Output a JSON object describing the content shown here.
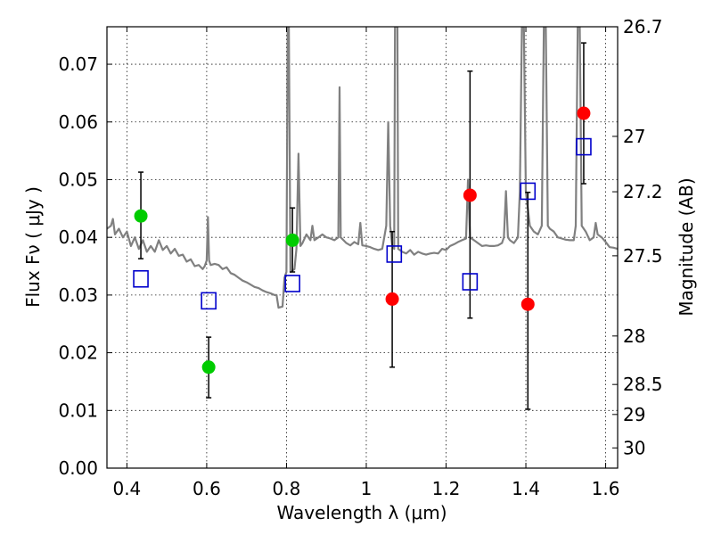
{
  "chart_data": {
    "type": "scatter",
    "xlabel": "Wavelength  λ (μm)",
    "ylabel": "Flux  Fν  ( μJy )",
    "y2label": "Magnitude (AB)",
    "xlim": [
      0.35,
      1.63
    ],
    "ylim": [
      0.0,
      0.0765
    ],
    "grid": true,
    "x_ticks": [
      {
        "value": 0.4,
        "label": "0.4"
      },
      {
        "value": 0.6,
        "label": "0.6"
      },
      {
        "value": 0.8,
        "label": "0.8"
      },
      {
        "value": 1.0,
        "label": "1"
      },
      {
        "value": 1.2,
        "label": "1.2"
      },
      {
        "value": 1.4,
        "label": "1.4"
      },
      {
        "value": 1.6,
        "label": "1.6"
      }
    ],
    "y_ticks": [
      {
        "value": 0.0,
        "label": "0.00"
      },
      {
        "value": 0.01,
        "label": "0.01"
      },
      {
        "value": 0.02,
        "label": "0.02"
      },
      {
        "value": 0.03,
        "label": "0.03"
      },
      {
        "value": 0.04,
        "label": "0.04"
      },
      {
        "value": 0.05,
        "label": "0.05"
      },
      {
        "value": 0.06,
        "label": "0.06"
      },
      {
        "value": 0.07,
        "label": "0.07"
      }
    ],
    "y2_ticks": [
      {
        "flux": 0.0765,
        "label": "26.7"
      },
      {
        "flux": 0.0575,
        "label": "27"
      },
      {
        "flux": 0.0479,
        "label": "27.2"
      },
      {
        "flux": 0.0368,
        "label": "27.5"
      },
      {
        "flux": 0.0229,
        "label": "28"
      },
      {
        "flux": 0.0145,
        "label": "28.5"
      },
      {
        "flux": 0.0093,
        "label": "29"
      },
      {
        "flux": 0.0035,
        "label": "30"
      }
    ],
    "colors": {
      "spectrum": "#808080",
      "green": "#00cc00",
      "red": "#ff0000",
      "model": "#0000cc",
      "errorbar": "#000000"
    },
    "spectrum": [
      [
        0.35,
        0.0415
      ],
      [
        0.36,
        0.042
      ],
      [
        0.365,
        0.0432
      ],
      [
        0.37,
        0.0405
      ],
      [
        0.38,
        0.0415
      ],
      [
        0.39,
        0.04
      ],
      [
        0.4,
        0.041
      ],
      [
        0.41,
        0.0385
      ],
      [
        0.42,
        0.04
      ],
      [
        0.43,
        0.038
      ],
      [
        0.44,
        0.0395
      ],
      [
        0.45,
        0.0375
      ],
      [
        0.46,
        0.0385
      ],
      [
        0.47,
        0.0375
      ],
      [
        0.48,
        0.0395
      ],
      [
        0.49,
        0.0378
      ],
      [
        0.5,
        0.0385
      ],
      [
        0.51,
        0.0372
      ],
      [
        0.52,
        0.038
      ],
      [
        0.53,
        0.0368
      ],
      [
        0.54,
        0.037
      ],
      [
        0.55,
        0.0358
      ],
      [
        0.56,
        0.0362
      ],
      [
        0.57,
        0.035
      ],
      [
        0.58,
        0.0352
      ],
      [
        0.59,
        0.0345
      ],
      [
        0.595,
        0.035
      ],
      [
        0.6,
        0.036
      ],
      [
        0.603,
        0.0435
      ],
      [
        0.606,
        0.036
      ],
      [
        0.61,
        0.0352
      ],
      [
        0.62,
        0.0354
      ],
      [
        0.63,
        0.0352
      ],
      [
        0.64,
        0.0345
      ],
      [
        0.65,
        0.0348
      ],
      [
        0.66,
        0.0338
      ],
      [
        0.67,
        0.0335
      ],
      [
        0.68,
        0.033
      ],
      [
        0.69,
        0.0325
      ],
      [
        0.7,
        0.0322
      ],
      [
        0.71,
        0.0318
      ],
      [
        0.72,
        0.0314
      ],
      [
        0.73,
        0.0312
      ],
      [
        0.74,
        0.0308
      ],
      [
        0.75,
        0.0305
      ],
      [
        0.76,
        0.0303
      ],
      [
        0.77,
        0.03
      ],
      [
        0.775,
        0.03
      ],
      [
        0.78,
        0.0278
      ],
      [
        0.79,
        0.028
      ],
      [
        0.795,
        0.033
      ],
      [
        0.8,
        0.034
      ],
      [
        0.803,
        0.0765
      ],
      [
        0.806,
        0.0765
      ],
      [
        0.81,
        0.034
      ],
      [
        0.82,
        0.0345
      ],
      [
        0.825,
        0.038
      ],
      [
        0.83,
        0.0545
      ],
      [
        0.835,
        0.0385
      ],
      [
        0.84,
        0.039
      ],
      [
        0.85,
        0.0405
      ],
      [
        0.86,
        0.0395
      ],
      [
        0.865,
        0.042
      ],
      [
        0.87,
        0.0395
      ],
      [
        0.88,
        0.04
      ],
      [
        0.89,
        0.0405
      ],
      [
        0.9,
        0.04
      ],
      [
        0.91,
        0.0398
      ],
      [
        0.92,
        0.0395
      ],
      [
        0.93,
        0.04
      ],
      [
        0.933,
        0.066
      ],
      [
        0.936,
        0.04
      ],
      [
        0.95,
        0.039
      ],
      [
        0.96,
        0.0386
      ],
      [
        0.97,
        0.0392
      ],
      [
        0.98,
        0.0388
      ],
      [
        0.985,
        0.0425
      ],
      [
        0.99,
        0.0386
      ],
      [
        1.0,
        0.0385
      ],
      [
        1.01,
        0.0383
      ],
      [
        1.02,
        0.038
      ],
      [
        1.03,
        0.0378
      ],
      [
        1.04,
        0.038
      ],
      [
        1.05,
        0.042
      ],
      [
        1.055,
        0.06
      ],
      [
        1.06,
        0.042
      ],
      [
        1.065,
        0.0385
      ],
      [
        1.07,
        0.038
      ],
      [
        1.072,
        0.0765
      ],
      [
        1.078,
        0.0765
      ],
      [
        1.08,
        0.038
      ],
      [
        1.09,
        0.0375
      ],
      [
        1.1,
        0.0372
      ],
      [
        1.11,
        0.0378
      ],
      [
        1.12,
        0.037
      ],
      [
        1.13,
        0.0375
      ],
      [
        1.14,
        0.0372
      ],
      [
        1.15,
        0.037
      ],
      [
        1.16,
        0.0372
      ],
      [
        1.17,
        0.0373
      ],
      [
        1.18,
        0.0372
      ],
      [
        1.19,
        0.038
      ],
      [
        1.2,
        0.0378
      ],
      [
        1.21,
        0.0385
      ],
      [
        1.22,
        0.0388
      ],
      [
        1.23,
        0.0392
      ],
      [
        1.24,
        0.0395
      ],
      [
        1.25,
        0.0398
      ],
      [
        1.255,
        0.05
      ],
      [
        1.26,
        0.04
      ],
      [
        1.27,
        0.0395
      ],
      [
        1.28,
        0.039
      ],
      [
        1.29,
        0.0385
      ],
      [
        1.3,
        0.0386
      ],
      [
        1.31,
        0.0385
      ],
      [
        1.32,
        0.0385
      ],
      [
        1.33,
        0.0386
      ],
      [
        1.34,
        0.039
      ],
      [
        1.345,
        0.04
      ],
      [
        1.35,
        0.048
      ],
      [
        1.355,
        0.04
      ],
      [
        1.36,
        0.0395
      ],
      [
        1.37,
        0.039
      ],
      [
        1.38,
        0.04
      ],
      [
        1.385,
        0.048
      ],
      [
        1.39,
        0.0765
      ],
      [
        1.395,
        0.0765
      ],
      [
        1.4,
        0.048
      ],
      [
        1.41,
        0.042
      ],
      [
        1.42,
        0.041
      ],
      [
        1.43,
        0.0405
      ],
      [
        1.44,
        0.042
      ],
      [
        1.445,
        0.0765
      ],
      [
        1.45,
        0.0765
      ],
      [
        1.455,
        0.042
      ],
      [
        1.46,
        0.0415
      ],
      [
        1.47,
        0.041
      ],
      [
        1.48,
        0.04
      ],
      [
        1.49,
        0.0398
      ],
      [
        1.5,
        0.0396
      ],
      [
        1.51,
        0.0395
      ],
      [
        1.52,
        0.0395
      ],
      [
        1.525,
        0.042
      ],
      [
        1.53,
        0.0765
      ],
      [
        1.535,
        0.0765
      ],
      [
        1.54,
        0.042
      ],
      [
        1.55,
        0.041
      ],
      [
        1.56,
        0.0395
      ],
      [
        1.57,
        0.04
      ],
      [
        1.575,
        0.0425
      ],
      [
        1.58,
        0.0405
      ],
      [
        1.59,
        0.04
      ],
      [
        1.6,
        0.0392
      ],
      [
        1.61,
        0.0383
      ],
      [
        1.62,
        0.0382
      ],
      [
        1.63,
        0.038
      ]
    ],
    "green_points": [
      {
        "x": 0.435,
        "y": 0.0437,
        "yerr_low": 0.0363,
        "yerr_high": 0.0513
      },
      {
        "x": 0.605,
        "y": 0.0175,
        "yerr_low": 0.0122,
        "yerr_high": 0.0227
      },
      {
        "x": 0.815,
        "y": 0.0395,
        "yerr_low": 0.034,
        "yerr_high": 0.0451
      }
    ],
    "red_points": [
      {
        "x": 1.065,
        "y": 0.0293,
        "yerr_low": 0.0175,
        "yerr_high": 0.041
      },
      {
        "x": 1.26,
        "y": 0.0473,
        "yerr_low": 0.026,
        "yerr_high": 0.0688
      },
      {
        "x": 1.405,
        "y": 0.0284,
        "yerr_low": 0.0102,
        "yerr_high": 0.0478
      },
      {
        "x": 1.545,
        "y": 0.0615,
        "yerr_low": 0.0493,
        "yerr_high": 0.0737
      }
    ],
    "model_points": [
      {
        "x": 0.435,
        "y": 0.0328
      },
      {
        "x": 0.605,
        "y": 0.029
      },
      {
        "x": 0.815,
        "y": 0.032
      },
      {
        "x": 1.07,
        "y": 0.0371
      },
      {
        "x": 1.26,
        "y": 0.0323
      },
      {
        "x": 1.405,
        "y": 0.048
      },
      {
        "x": 1.545,
        "y": 0.0557
      }
    ]
  }
}
